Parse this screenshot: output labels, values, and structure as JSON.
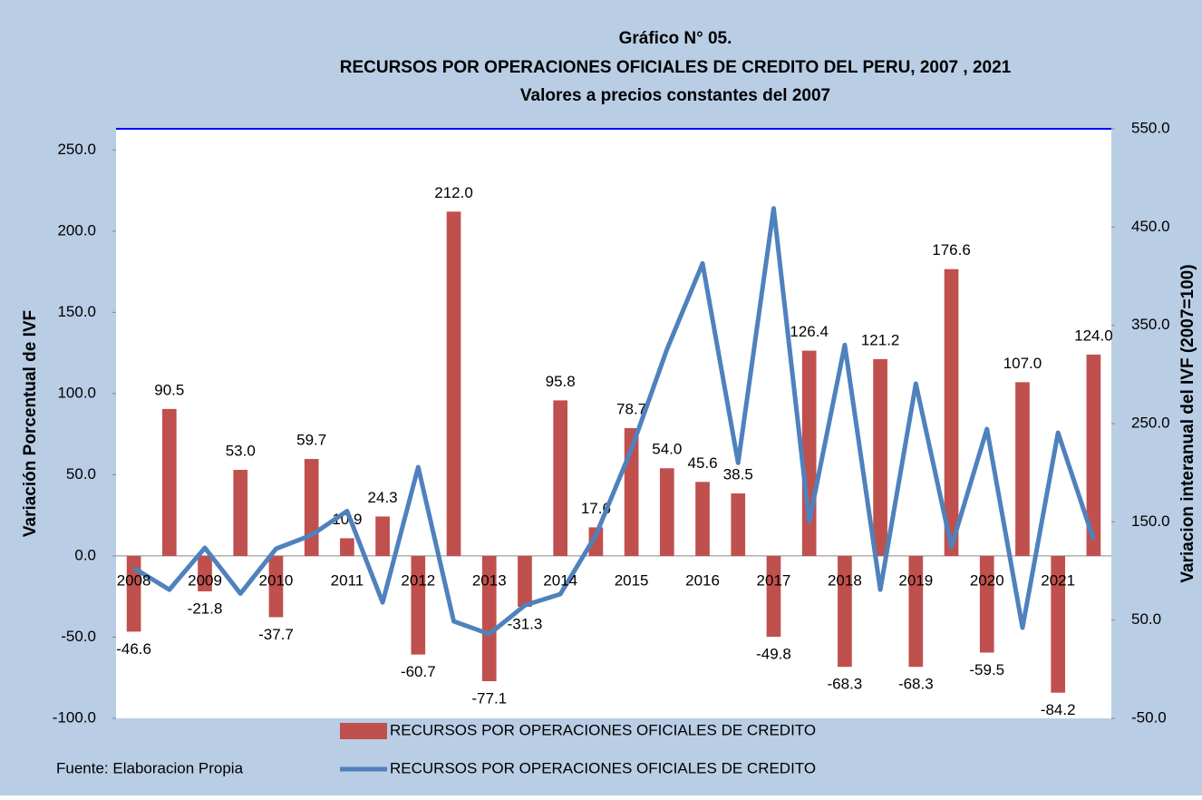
{
  "chart_data": {
    "type": "bar",
    "title": "Gráfico N° 05.",
    "subtitle": "RECURSOS POR OPERACIONES OFICIALES DE CREDITO DEL PERU, 2007 , 2021",
    "subtitle2": "Valores a precios constantes del 2007",
    "y_label": "Variación Porcentual de IVF",
    "y2_label": "Variacion interanual del  IVF   (2007=100)",
    "source": "Fuente: Elaboracion Propia",
    "categories": [
      "2008",
      null,
      "2009",
      null,
      "2010",
      null,
      "2011",
      null,
      "2012",
      null,
      "2013",
      null,
      "2014",
      null,
      "2015",
      null,
      "2016",
      null,
      "2017",
      null,
      "2018",
      null,
      "2019",
      null,
      "2020",
      null,
      "2021",
      null
    ],
    "series": [
      {
        "name": "RECURSOS POR OPERACIONES OFICIALES DE CREDITO",
        "type": "bar",
        "color": "#c0504d",
        "values": [
          -46.6,
          90.5,
          -21.8,
          53.0,
          -37.7,
          59.7,
          10.9,
          24.3,
          -60.7,
          212.0,
          -77.1,
          -31.3,
          95.8,
          17.6,
          78.7,
          54.0,
          45.6,
          38.5,
          -49.8,
          126.4,
          -68.3,
          121.2,
          -68.3,
          176.6,
          -59.5,
          107.0,
          -84.2,
          124.0
        ],
        "value_labels": [
          "-46.6",
          "90.5",
          "-21.8",
          "53.0",
          "-37.7",
          "59.7",
          "10.9",
          "24.3",
          "-60.7",
          "212.0",
          "-77.1",
          "-31.3",
          "95.8",
          "17.6",
          "78.7",
          "54.0",
          "45.6",
          "38.5",
          "-49.8",
          "126.4",
          "-68.3",
          "121.2",
          "-68.3",
          "176.6",
          "-59.5",
          "107.0",
          "-84.2",
          "124.0"
        ]
      },
      {
        "name": "RECURSOS POR OPERACIONES OFICIALES DE CREDITO",
        "type": "line",
        "axis": "y2",
        "color": "#4f81bd",
        "values": [
          103,
          81,
          123.5,
          77,
          122.6,
          136.5,
          161,
          68,
          205.7,
          48.8,
          35.8,
          65,
          76.5,
          136.5,
          224,
          325.7,
          413,
          210,
          469,
          150,
          330,
          81,
          290.6,
          124.5,
          244.5,
          42.3,
          240.7,
          132
        ]
      }
    ],
    "ylim": [
      -100,
      263
    ],
    "yticks": [
      {
        "value": -100,
        "label": "-100.0"
      },
      {
        "value": -50,
        "label": "-50.0"
      },
      {
        "value": 0,
        "label": "0.0"
      },
      {
        "value": 50,
        "label": "50.0"
      },
      {
        "value": 100,
        "label": "100.0"
      },
      {
        "value": 150,
        "label": "150.0"
      },
      {
        "value": 200,
        "label": "200.0"
      },
      {
        "value": 250,
        "label": "250.0"
      }
    ],
    "y2lim": [
      -50,
      550
    ],
    "y2ticks": [
      {
        "value": -50,
        "label": "-50.0"
      },
      {
        "value": 50,
        "label": "50.0"
      },
      {
        "value": 150,
        "label": "150.0"
      },
      {
        "value": 250,
        "label": "250.0"
      },
      {
        "value": 350,
        "label": "350.0"
      },
      {
        "value": 450,
        "label": "450.0"
      },
      {
        "value": 550,
        "label": "550.0"
      }
    ]
  }
}
